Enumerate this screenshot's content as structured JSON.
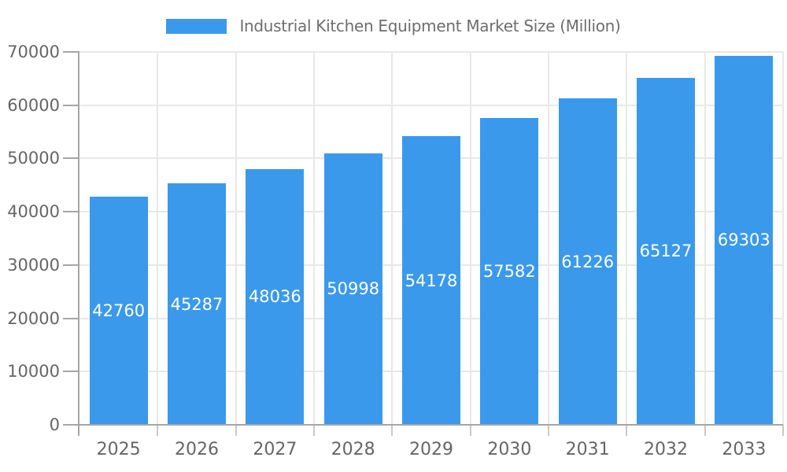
{
  "legend": {
    "label": "Industrial Kitchen Equipment Market Size (Million)"
  },
  "chart_data": {
    "type": "bar",
    "title": "Industrial Kitchen Equipment Market Size (Million)",
    "categories": [
      "2025",
      "2026",
      "2027",
      "2028",
      "2029",
      "2030",
      "2031",
      "2032",
      "2033"
    ],
    "series": [
      {
        "name": "Industrial Kitchen Equipment Market Size (Million)",
        "values": [
          42760,
          45287,
          48036,
          50998,
          54178,
          57582,
          61226,
          65127,
          69303
        ]
      }
    ],
    "xlabel": "",
    "ylabel": "",
    "ylim": [
      0,
      70000
    ],
    "yticks": [
      0,
      10000,
      20000,
      30000,
      40000,
      50000,
      60000,
      70000
    ],
    "grid": true,
    "legend_position": "top-center",
    "value_label_position": "inside-middle",
    "bar_color": "#3b99ec",
    "value_label_color": "#ffffff",
    "axis_label_color": "#666666",
    "title_color": "#6e6e6e",
    "grid_color": "#e8e8e8",
    "axis_line_color": "#a6a6a6",
    "background_color": "#ffffff"
  }
}
